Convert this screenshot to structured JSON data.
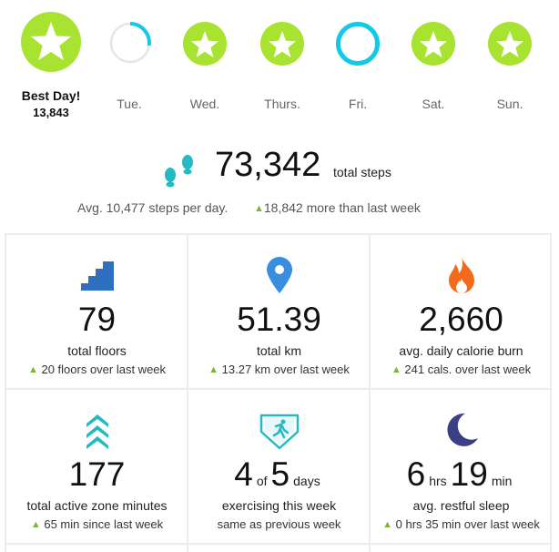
{
  "days": [
    {
      "label": "Best Day!",
      "sub": "13,843",
      "state": "complete-best"
    },
    {
      "label": "Tue.",
      "state": "partial",
      "progress": 0.35
    },
    {
      "label": "Wed.",
      "state": "complete"
    },
    {
      "label": "Thurs.",
      "state": "complete"
    },
    {
      "label": "Fri.",
      "state": "partial",
      "progress": 0.97
    },
    {
      "label": "Sat.",
      "state": "complete"
    },
    {
      "label": "Sun.",
      "state": "complete"
    }
  ],
  "steps": {
    "value": "73,342",
    "unit": "total steps",
    "avg": "Avg. 10,477 steps per day.",
    "more": "18,842 more than last week"
  },
  "tiles": {
    "floors": {
      "value": "79",
      "label": "total floors",
      "change": "20 floors over last week"
    },
    "km": {
      "value": "51.39",
      "label": "total km",
      "change": "13.27 km over last week"
    },
    "calories": {
      "value": "2,660",
      "label": "avg. daily calorie burn",
      "change": "241 cals. over last week"
    },
    "azm": {
      "value": "177",
      "label": "total active zone minutes",
      "change": "65 min since last week"
    },
    "exercise": {
      "num": "4",
      "of": "of",
      "total": "5",
      "unit": "days",
      "label": "exercising this week",
      "change": "same as previous week"
    },
    "sleep": {
      "hrs": "6",
      "hrs_unit": "hrs",
      "min": "19",
      "min_unit": "min",
      "label": "avg. restful sleep",
      "change": "0 hrs 35 min over last week"
    }
  },
  "colors": {
    "goal_green": "#a7e330",
    "ring_blue": "#14c8e8",
    "ring_gray": "#e5e5e5",
    "up_arrow": "#7db534",
    "floors_blue": "#2f6fc0",
    "location_blue": "#3a8ee0",
    "flame_orange": "#f26a1b",
    "azm_teal": "#25b9c1",
    "moon_indigo": "#3b3f86"
  }
}
